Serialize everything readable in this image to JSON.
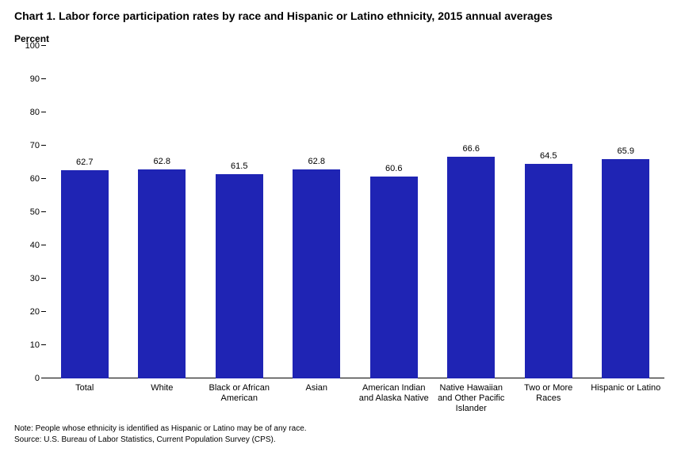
{
  "chart": {
    "type": "bar",
    "title": "Chart 1. Labor force participation rates by race and Hispanic or Latino ethnicity, 2015 annual averages",
    "y_axis_label": "Percent",
    "ylim": [
      0,
      100
    ],
    "ytick_step": 10,
    "yticks": [
      0,
      10,
      20,
      30,
      40,
      50,
      60,
      70,
      80,
      90,
      100
    ],
    "categories": [
      "Total",
      "White",
      "Black or African American",
      "Asian",
      "American Indian and Alaska Native",
      "Native Hawaiian and Other Pacific Islander",
      "Two or More Races",
      "Hispanic or Latino"
    ],
    "values": [
      62.7,
      62.8,
      61.5,
      62.8,
      60.6,
      66.6,
      64.5,
      65.9
    ],
    "bar_color": "#1f24b4",
    "background_color": "#ffffff",
    "axis_color": "#000000",
    "title_fontsize": 14,
    "label_fontsize": 12,
    "tick_fontsize": 11,
    "value_fontsize": 11,
    "footnote_fontsize": 10,
    "bar_width": 0.62,
    "footnote1": "Note: People whose ethnicity is identified as Hispanic or Latino may be of any race.",
    "footnote2": "Source: U.S. Bureau of Labor Statistics, Current Population Survey (CPS)."
  }
}
